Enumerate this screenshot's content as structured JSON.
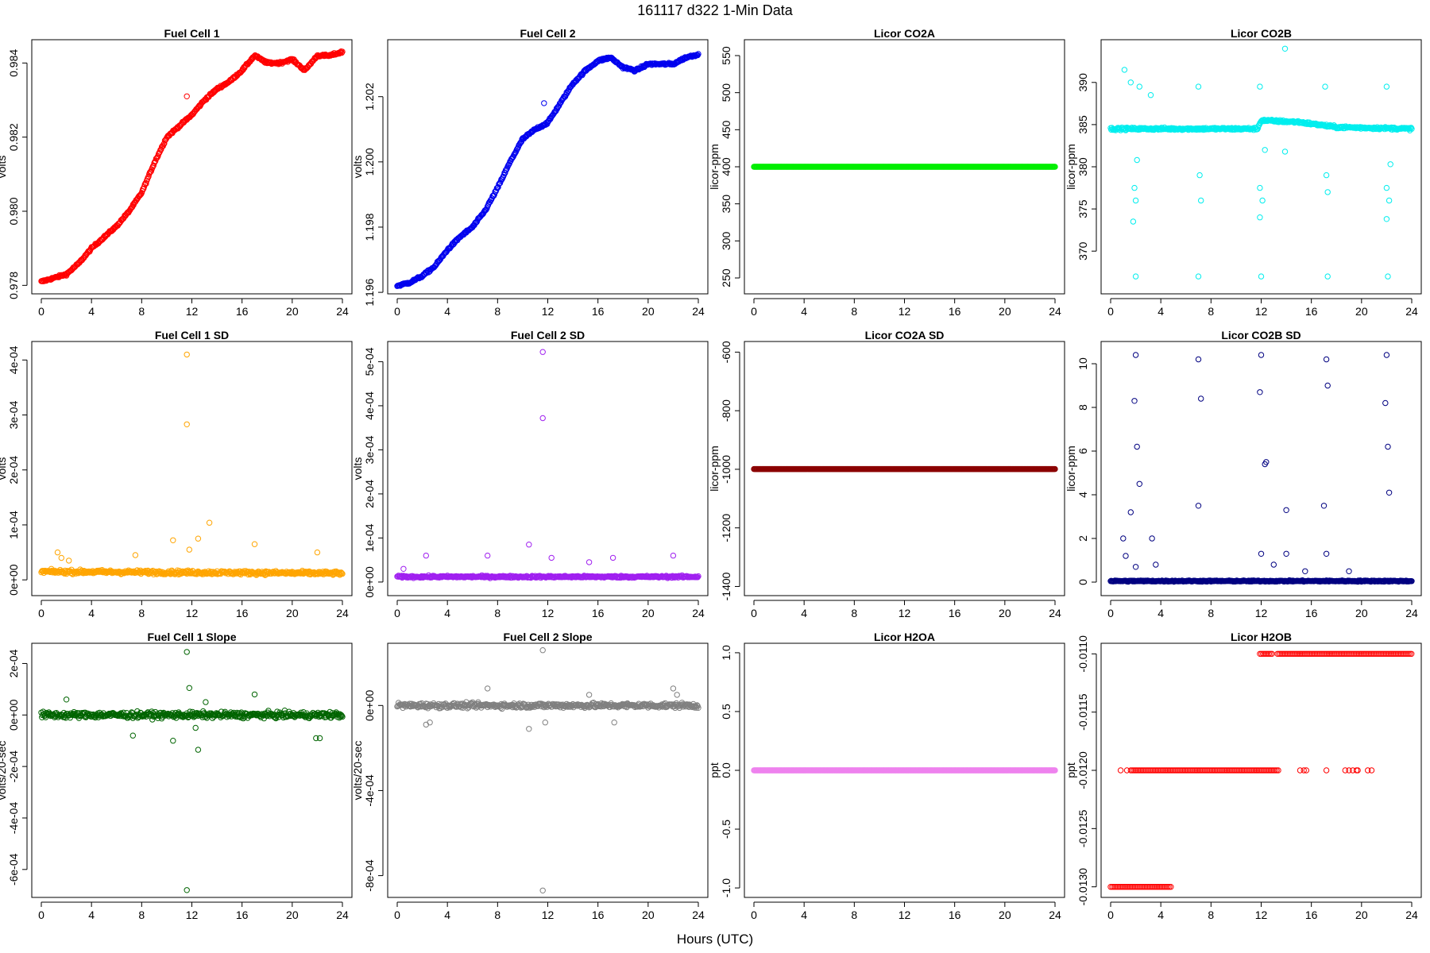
{
  "page": {
    "title": "161117    d322    1-Min Data",
    "xlabel": "Hours (UTC)"
  },
  "chart_data": [
    {
      "id": "fc1",
      "type": "scatter",
      "title": "Fuel Cell 1",
      "ylabel": "volts",
      "color": "#ff0000",
      "xlim": [
        0,
        24
      ],
      "x_ticks": [
        0,
        4,
        8,
        12,
        16,
        20,
        24
      ],
      "x_tick_labels": [
        "0",
        "4",
        "8",
        "12",
        "16",
        "20",
        "24"
      ],
      "ylim": [
        0.9779,
        0.9845
      ],
      "y_ticks": [
        0.978,
        0.98,
        0.982,
        0.984
      ],
      "y_tick_labels": [
        "0.978",
        "0.980",
        "0.982",
        "0.984"
      ],
      "trend": [
        [
          0,
          0.9781
        ],
        [
          1,
          0.9782
        ],
        [
          2,
          0.9783
        ],
        [
          3,
          0.9786
        ],
        [
          4,
          0.979
        ],
        [
          5,
          0.9793
        ],
        [
          6,
          0.9796
        ],
        [
          7,
          0.98
        ],
        [
          8,
          0.9805
        ],
        [
          9,
          0.9813
        ],
        [
          10,
          0.982
        ],
        [
          11,
          0.9823
        ],
        [
          12,
          0.9826
        ],
        [
          13,
          0.983
        ],
        [
          14,
          0.9833
        ],
        [
          15,
          0.9835
        ],
        [
          16,
          0.9838
        ],
        [
          17,
          0.9842
        ],
        [
          18,
          0.984
        ],
        [
          19,
          0.984
        ],
        [
          20,
          0.9841
        ],
        [
          21,
          0.9838
        ],
        [
          22,
          0.9842
        ],
        [
          23,
          0.9842
        ],
        [
          24,
          0.9843
        ]
      ],
      "noise": 5e-05,
      "outliers": [
        [
          11.6,
          0.9831
        ]
      ]
    },
    {
      "id": "fc2",
      "type": "scatter",
      "title": "Fuel Cell 2",
      "ylabel": "volts",
      "color": "#0000ee",
      "xlim": [
        0,
        24
      ],
      "x_ticks": [
        0,
        4,
        8,
        12,
        16,
        20,
        24
      ],
      "x_tick_labels": [
        "0",
        "4",
        "8",
        "12",
        "16",
        "20",
        "24"
      ],
      "ylim": [
        1.1961,
        1.2036
      ],
      "y_ticks": [
        1.196,
        1.198,
        1.2,
        1.202
      ],
      "y_tick_labels": [
        "1.196",
        "1.198",
        "1.200",
        "1.202"
      ],
      "trend": [
        [
          0,
          1.1962
        ],
        [
          1,
          1.1963
        ],
        [
          2,
          1.1965
        ],
        [
          3,
          1.1968
        ],
        [
          4,
          1.1973
        ],
        [
          5,
          1.1977
        ],
        [
          6,
          1.198
        ],
        [
          7,
          1.1985
        ],
        [
          8,
          1.1992
        ],
        [
          9,
          1.2
        ],
        [
          10,
          1.2007
        ],
        [
          11,
          1.201
        ],
        [
          12,
          1.2012
        ],
        [
          13,
          1.2018
        ],
        [
          14,
          1.2024
        ],
        [
          15,
          1.2028
        ],
        [
          16,
          1.2031
        ],
        [
          17,
          1.2032
        ],
        [
          18,
          1.2029
        ],
        [
          19,
          1.2028
        ],
        [
          20,
          1.203
        ],
        [
          21,
          1.203
        ],
        [
          22,
          1.203
        ],
        [
          23,
          1.2032
        ],
        [
          24,
          1.2033
        ]
      ],
      "noise": 6e-05,
      "outliers": [
        [
          11.7,
          1.2018
        ]
      ]
    },
    {
      "id": "co2a",
      "type": "scatter",
      "title": "Licor CO2A",
      "ylabel": "licor-ppm",
      "color": "#00ee00",
      "xlim": [
        0,
        24
      ],
      "x_ticks": [
        0,
        4,
        8,
        12,
        16,
        20,
        24
      ],
      "x_tick_labels": [
        "0",
        "4",
        "8",
        "12",
        "16",
        "20",
        "24"
      ],
      "ylim": [
        235,
        565
      ],
      "y_ticks": [
        250,
        300,
        350,
        400,
        450,
        500,
        550
      ],
      "y_tick_labels": [
        "250",
        "300",
        "350",
        "400",
        "450",
        "500",
        "550"
      ],
      "trend": [
        [
          0,
          400
        ],
        [
          24,
          400
        ]
      ],
      "noise": 0,
      "outliers": []
    },
    {
      "id": "co2b",
      "type": "scatter",
      "title": "Licor CO2B",
      "ylabel": "licor-ppm",
      "color": "#00eeee",
      "xlim": [
        0,
        24
      ],
      "x_ticks": [
        0,
        4,
        8,
        12,
        16,
        20,
        24
      ],
      "x_tick_labels": [
        "0",
        "4",
        "8",
        "12",
        "16",
        "20",
        "24"
      ],
      "ylim": [
        365.5,
        394.5
      ],
      "y_ticks": [
        370,
        375,
        380,
        385,
        390
      ],
      "y_tick_labels": [
        "370",
        "375",
        "380",
        "385",
        "390"
      ],
      "trend": [
        [
          0,
          384.5
        ],
        [
          11.7,
          384.5
        ],
        [
          12,
          385.5
        ],
        [
          15,
          385.3
        ],
        [
          18,
          384.7
        ],
        [
          24,
          384.5
        ]
      ],
      "noise": 0.25,
      "outliers": [
        [
          1.1,
          391.5
        ],
        [
          1.6,
          390
        ],
        [
          1.8,
          373.5
        ],
        [
          1.9,
          377.5
        ],
        [
          2.0,
          376
        ],
        [
          2.0,
          367
        ],
        [
          2.1,
          380.8
        ],
        [
          2.3,
          389.5
        ],
        [
          3.2,
          388.5
        ],
        [
          7.0,
          389.5
        ],
        [
          7.0,
          367
        ],
        [
          7.1,
          379
        ],
        [
          7.2,
          376
        ],
        [
          11.9,
          389.5
        ],
        [
          11.9,
          377.5
        ],
        [
          11.9,
          374
        ],
        [
          12.0,
          367
        ],
        [
          12.1,
          376
        ],
        [
          12.3,
          382
        ],
        [
          13.9,
          394
        ],
        [
          13.9,
          381.8
        ],
        [
          17.1,
          389.5
        ],
        [
          17.2,
          379
        ],
        [
          17.3,
          377
        ],
        [
          17.3,
          367
        ],
        [
          22.0,
          389.5
        ],
        [
          22.0,
          377.5
        ],
        [
          22.0,
          373.8
        ],
        [
          22.1,
          367
        ],
        [
          22.2,
          376
        ],
        [
          22.3,
          380.3
        ]
      ]
    },
    {
      "id": "fc1sd",
      "type": "scatter",
      "title": "Fuel Cell 1 SD",
      "ylabel": "volts",
      "color": "#ffa500",
      "xlim": [
        0,
        24
      ],
      "x_ticks": [
        0,
        4,
        8,
        12,
        16,
        20,
        24
      ],
      "x_tick_labels": [
        "0",
        "4",
        "8",
        "12",
        "16",
        "20",
        "24"
      ],
      "ylim": [
        -2e-05,
        0.000425
      ],
      "y_ticks": [
        0,
        0.0001,
        0.0002,
        0.0003,
        0.0004
      ],
      "y_tick_labels": [
        "0e+00",
        "1e-04",
        "2e-04",
        "3e-04",
        "4e-04"
      ],
      "trend": [
        [
          0,
          1.5e-05
        ],
        [
          24,
          1.2e-05
        ]
      ],
      "noise": 6e-06,
      "outliers": [
        [
          11.6,
          0.00041
        ],
        [
          11.6,
          0.000283
        ],
        [
          13.4,
          0.000104
        ],
        [
          10.5,
          7.2e-05
        ],
        [
          12.5,
          7.5e-05
        ],
        [
          11.8,
          5.5e-05
        ],
        [
          17,
          6.5e-05
        ],
        [
          22,
          5e-05
        ],
        [
          1.3,
          5e-05
        ],
        [
          7.5,
          4.5e-05
        ],
        [
          1.6,
          4e-05
        ],
        [
          2.2,
          3.5e-05
        ]
      ]
    },
    {
      "id": "fc2sd",
      "type": "scatter",
      "title": "Fuel Cell 2 SD",
      "ylabel": "volts",
      "color": "#a020f0",
      "xlim": [
        0,
        24
      ],
      "x_ticks": [
        0,
        4,
        8,
        12,
        16,
        20,
        24
      ],
      "x_tick_labels": [
        "0",
        "4",
        "8",
        "12",
        "16",
        "20",
        "24"
      ],
      "ylim": [
        -2e-05,
        0.000535
      ],
      "y_ticks": [
        0,
        0.0001,
        0.0002,
        0.0003,
        0.0004,
        0.0005
      ],
      "y_tick_labels": [
        "0e+00",
        "1e-04",
        "2e-04",
        "3e-04",
        "4e-04",
        "5e-04"
      ],
      "trend": [
        [
          0,
          1.2e-05
        ],
        [
          24,
          1.2e-05
        ]
      ],
      "noise": 4e-06,
      "outliers": [
        [
          11.6,
          0.000522
        ],
        [
          11.6,
          0.000372
        ],
        [
          10.5,
          8.5e-05
        ],
        [
          2.3,
          6e-05
        ],
        [
          7.2,
          6e-05
        ],
        [
          12.3,
          5.5e-05
        ],
        [
          22,
          6e-05
        ],
        [
          15.3,
          4.5e-05
        ],
        [
          17.2,
          5.5e-05
        ],
        [
          0.5,
          3e-05
        ]
      ]
    },
    {
      "id": "co2asd",
      "type": "scatter",
      "title": "Licor CO2A SD",
      "ylabel": "licor-ppm",
      "color": "#8b0000",
      "xlim": [
        0,
        24
      ],
      "x_ticks": [
        0,
        4,
        8,
        12,
        16,
        20,
        24
      ],
      "x_tick_labels": [
        "0",
        "4",
        "8",
        "12",
        "16",
        "20",
        "24"
      ],
      "ylim": [
        -1415,
        -580
      ],
      "y_ticks": [
        -1400,
        -1200,
        -1000,
        -800,
        -600
      ],
      "y_tick_labels": [
        "-1400",
        "-1200",
        "-1000",
        "-800",
        "-600"
      ],
      "trend": [
        [
          0,
          -999
        ],
        [
          24,
          -999
        ]
      ],
      "noise": 0,
      "outliers": []
    },
    {
      "id": "co2bsd",
      "type": "scatter",
      "title": "Licor CO2B SD",
      "ylabel": "licor-ppm",
      "color": "#000080",
      "xlim": [
        0,
        24
      ],
      "x_ticks": [
        0,
        4,
        8,
        12,
        16,
        20,
        24
      ],
      "x_tick_labels": [
        "0",
        "4",
        "8",
        "12",
        "16",
        "20",
        "24"
      ],
      "ylim": [
        -0.4,
        10.8
      ],
      "y_ticks": [
        0,
        2,
        4,
        6,
        8,
        10
      ],
      "y_tick_labels": [
        "0",
        "2",
        "4",
        "6",
        "8",
        "10"
      ],
      "trend": [
        [
          0,
          0.05
        ],
        [
          24,
          0.05
        ]
      ],
      "noise": 0.05,
      "outliers": [
        [
          2.0,
          10.4
        ],
        [
          1.9,
          8.3
        ],
        [
          2.1,
          6.2
        ],
        [
          2.3,
          4.5
        ],
        [
          1.6,
          3.2
        ],
        [
          1.0,
          2.0
        ],
        [
          3.3,
          2.0
        ],
        [
          7.0,
          10.2
        ],
        [
          7.2,
          8.4
        ],
        [
          7.0,
          3.5
        ],
        [
          12.0,
          10.4
        ],
        [
          11.9,
          8.7
        ],
        [
          12.3,
          5.4
        ],
        [
          12.4,
          5.5
        ],
        [
          14.0,
          3.3
        ],
        [
          17.2,
          10.2
        ],
        [
          17.3,
          9.0
        ],
        [
          17.0,
          3.5
        ],
        [
          22.0,
          10.4
        ],
        [
          21.9,
          8.2
        ],
        [
          22.1,
          6.2
        ],
        [
          22.2,
          4.1
        ],
        [
          1.2,
          1.2
        ],
        [
          12.0,
          1.3
        ],
        [
          14,
          1.3
        ],
        [
          17.2,
          1.3
        ],
        [
          13,
          0.8
        ],
        [
          3.6,
          0.8
        ],
        [
          2,
          0.7
        ],
        [
          15.5,
          0.5
        ],
        [
          19,
          0.5
        ]
      ]
    },
    {
      "id": "fc1sl",
      "type": "scatter",
      "title": "Fuel Cell 1 Slope",
      "ylabel": "volts/20-sec",
      "color": "#006400",
      "xlim": [
        0,
        24
      ],
      "x_ticks": [
        0,
        4,
        8,
        12,
        16,
        20,
        24
      ],
      "x_tick_labels": [
        "0",
        "4",
        "8",
        "12",
        "16",
        "20",
        "24"
      ],
      "ylim": [
        -0.00069,
        0.00026
      ],
      "y_ticks": [
        -0.0006,
        -0.0004,
        -0.0002,
        0,
        0.0002
      ],
      "y_tick_labels": [
        "-6e-04",
        "-4e-04",
        "-2e-04",
        "0e+00",
        "2e-04"
      ],
      "trend": [
        [
          0,
          0
        ],
        [
          24,
          0
        ]
      ],
      "noise": 2e-05,
      "outliers": [
        [
          11.6,
          0.000245
        ],
        [
          11.6,
          -0.00068
        ],
        [
          11.8,
          0.000105
        ],
        [
          12.5,
          -0.000135
        ],
        [
          10.5,
          -0.0001
        ],
        [
          17,
          8e-05
        ],
        [
          7.3,
          -8e-05
        ],
        [
          21.9,
          -9e-05
        ],
        [
          22.2,
          -9e-05
        ],
        [
          12.3,
          -5e-05
        ],
        [
          13.1,
          5e-05
        ],
        [
          2,
          6e-05
        ]
      ]
    },
    {
      "id": "fc2sl",
      "type": "scatter",
      "title": "Fuel Cell 2 Slope",
      "ylabel": "volts/20-sec",
      "color": "#808080",
      "xlim": [
        0,
        24
      ],
      "x_ticks": [
        0,
        4,
        8,
        12,
        16,
        20,
        24
      ],
      "x_tick_labels": [
        "0",
        "4",
        "8",
        "12",
        "16",
        "20",
        "24"
      ],
      "ylim": [
        -0.00088,
        0.00027
      ],
      "y_ticks": [
        -0.0008,
        -0.0004,
        0
      ],
      "y_tick_labels": [
        "-8e-04",
        "-4e-04",
        "0e+00"
      ],
      "trend": [
        [
          0,
          0
        ],
        [
          24,
          0
        ]
      ],
      "noise": 2e-05,
      "outliers": [
        [
          11.6,
          0.00026
        ],
        [
          11.6,
          -0.00087
        ],
        [
          10.5,
          -0.00011
        ],
        [
          11.8,
          -8e-05
        ],
        [
          2.3,
          -9e-05
        ],
        [
          2.6,
          -8e-05
        ],
        [
          7.2,
          8e-05
        ],
        [
          15.3,
          5e-05
        ],
        [
          17.3,
          -8e-05
        ],
        [
          22.0,
          8e-05
        ],
        [
          22.3,
          5e-05
        ]
      ]
    },
    {
      "id": "h2oa",
      "type": "scatter",
      "title": "Licor H2OA",
      "ylabel": "ppt",
      "color": "#ee82ee",
      "xlim": [
        0,
        24
      ],
      "x_ticks": [
        0,
        4,
        8,
        12,
        16,
        20,
        24
      ],
      "x_tick_labels": [
        "0",
        "4",
        "8",
        "12",
        "16",
        "20",
        "24"
      ],
      "ylim": [
        -1.04,
        1.04
      ],
      "y_ticks": [
        -1.0,
        -0.5,
        0.0,
        0.5,
        1.0
      ],
      "y_tick_labels": [
        "-1.0",
        "-0.5",
        "0.0",
        "0.5",
        "1.0"
      ],
      "trend": [
        [
          0,
          0
        ],
        [
          24,
          0
        ]
      ],
      "noise": 0,
      "outliers": []
    },
    {
      "id": "h2ob",
      "type": "scatter",
      "title": "Licor H2OB",
      "ylabel": "ppt",
      "color": "#ff0000",
      "xlim": [
        0,
        24
      ],
      "x_ticks": [
        0,
        4,
        8,
        12,
        16,
        20,
        24
      ],
      "x_tick_labels": [
        "0",
        "4",
        "8",
        "12",
        "16",
        "20",
        "24"
      ],
      "ylim": [
        -0.01305,
        -0.01095
      ],
      "y_ticks": [
        -0.013,
        -0.0125,
        -0.012,
        -0.0115,
        -0.011
      ],
      "y_tick_labels": [
        "-0.0130",
        "-0.0125",
        "-0.0120",
        "-0.0115",
        "-0.0110"
      ],
      "levels": [
        {
          "value": -0.013,
          "x_ranges": [
            [
              0,
              4.9
            ]
          ]
        },
        {
          "value": -0.012,
          "x_ranges": [
            [
              1.6,
              13.4
            ]
          ],
          "scatter_x": [
            0.8,
            1.3,
            15.1,
            15.4,
            15.6,
            17.2,
            18.7,
            19.0,
            19.3,
            19.6,
            19.7,
            20.5,
            20.8
          ]
        },
        {
          "value": -0.011,
          "x_ranges": [
            [
              11.9,
              12.9
            ],
            [
              13.3,
              24
            ]
          ]
        }
      ]
    }
  ]
}
